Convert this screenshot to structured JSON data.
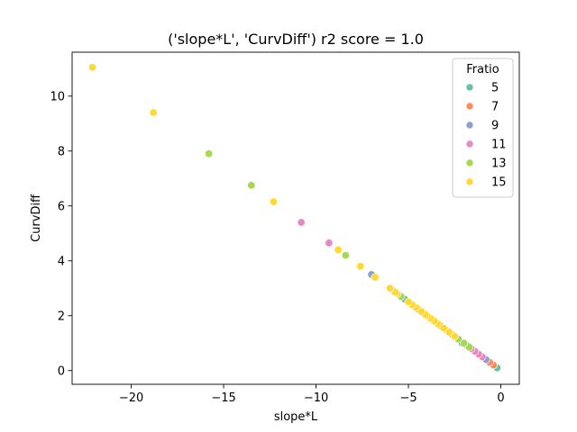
{
  "chart_data": {
    "type": "scatter",
    "title": "('slope*L', 'CurvDiff') r2 score = 1.0",
    "xlabel": "slope*L",
    "ylabel": "CurvDiff",
    "xlim": [
      -23.2,
      1.0
    ],
    "ylim": [
      -0.5,
      11.6
    ],
    "xticks": [
      -20,
      -15,
      -10,
      -5,
      0
    ],
    "xtick_labels": [
      "−20",
      "−15",
      "−10",
      "−5",
      "0"
    ],
    "yticks": [
      0,
      2,
      4,
      6,
      8,
      10
    ],
    "ytick_labels": [
      "0",
      "2",
      "4",
      "6",
      "8",
      "10"
    ],
    "grid": false,
    "legend": {
      "title": "Fratio",
      "placement": "top-right"
    },
    "series": [
      {
        "name": "5",
        "color": "#66c2a5",
        "x": [
          -0.2,
          -0.4,
          -1.8,
          -2.1,
          -3.3,
          -4.2,
          -5.2
        ],
        "y": [
          0.1,
          0.2,
          0.9,
          1.0,
          1.65,
          2.1,
          2.6
        ]
      },
      {
        "name": "7",
        "color": "#fc8d62",
        "x": [
          -0.4,
          -0.6,
          -1.5,
          -2.6,
          -3.7
        ],
        "y": [
          0.2,
          0.3,
          0.75,
          1.3,
          1.85
        ]
      },
      {
        "name": "9",
        "color": "#8da0cb",
        "x": [
          -0.8,
          -1.3,
          -2.9,
          -4.5,
          -6.9,
          -7.0
        ],
        "y": [
          0.4,
          0.65,
          1.45,
          2.25,
          3.45,
          3.5
        ]
      },
      {
        "name": "11",
        "color": "#e78ac3",
        "x": [
          -1.0,
          -1.2,
          -1.4,
          -1.6,
          -9.3,
          -10.8
        ],
        "y": [
          0.5,
          0.6,
          0.7,
          0.8,
          4.65,
          5.4
        ]
      },
      {
        "name": "13",
        "color": "#a6d854",
        "x": [
          -1.7,
          -2.0,
          -2.3,
          -3.0,
          -3.9,
          -4.9,
          -5.4,
          -5.6,
          -5.8,
          -8.4,
          -13.5,
          -15.8
        ],
        "y": [
          0.85,
          1.0,
          1.15,
          1.5,
          1.95,
          2.45,
          2.7,
          2.8,
          2.9,
          4.2,
          6.75,
          7.9
        ]
      },
      {
        "name": "15",
        "color": "#ffd92f",
        "x": [
          -2.5,
          -2.8,
          -3.1,
          -3.4,
          -3.6,
          -3.8,
          -4.0,
          -4.1,
          -4.3,
          -4.6,
          -4.8,
          -5.0,
          -5.6,
          -5.7,
          -6.0,
          -6.8,
          -7.6,
          -8.8,
          -12.3,
          -18.8,
          -22.1
        ],
        "y": [
          1.25,
          1.4,
          1.55,
          1.7,
          1.8,
          1.9,
          2.0,
          2.05,
          2.15,
          2.3,
          2.4,
          2.5,
          2.8,
          2.85,
          3.0,
          3.4,
          3.8,
          4.4,
          6.15,
          9.4,
          11.05
        ]
      }
    ]
  }
}
